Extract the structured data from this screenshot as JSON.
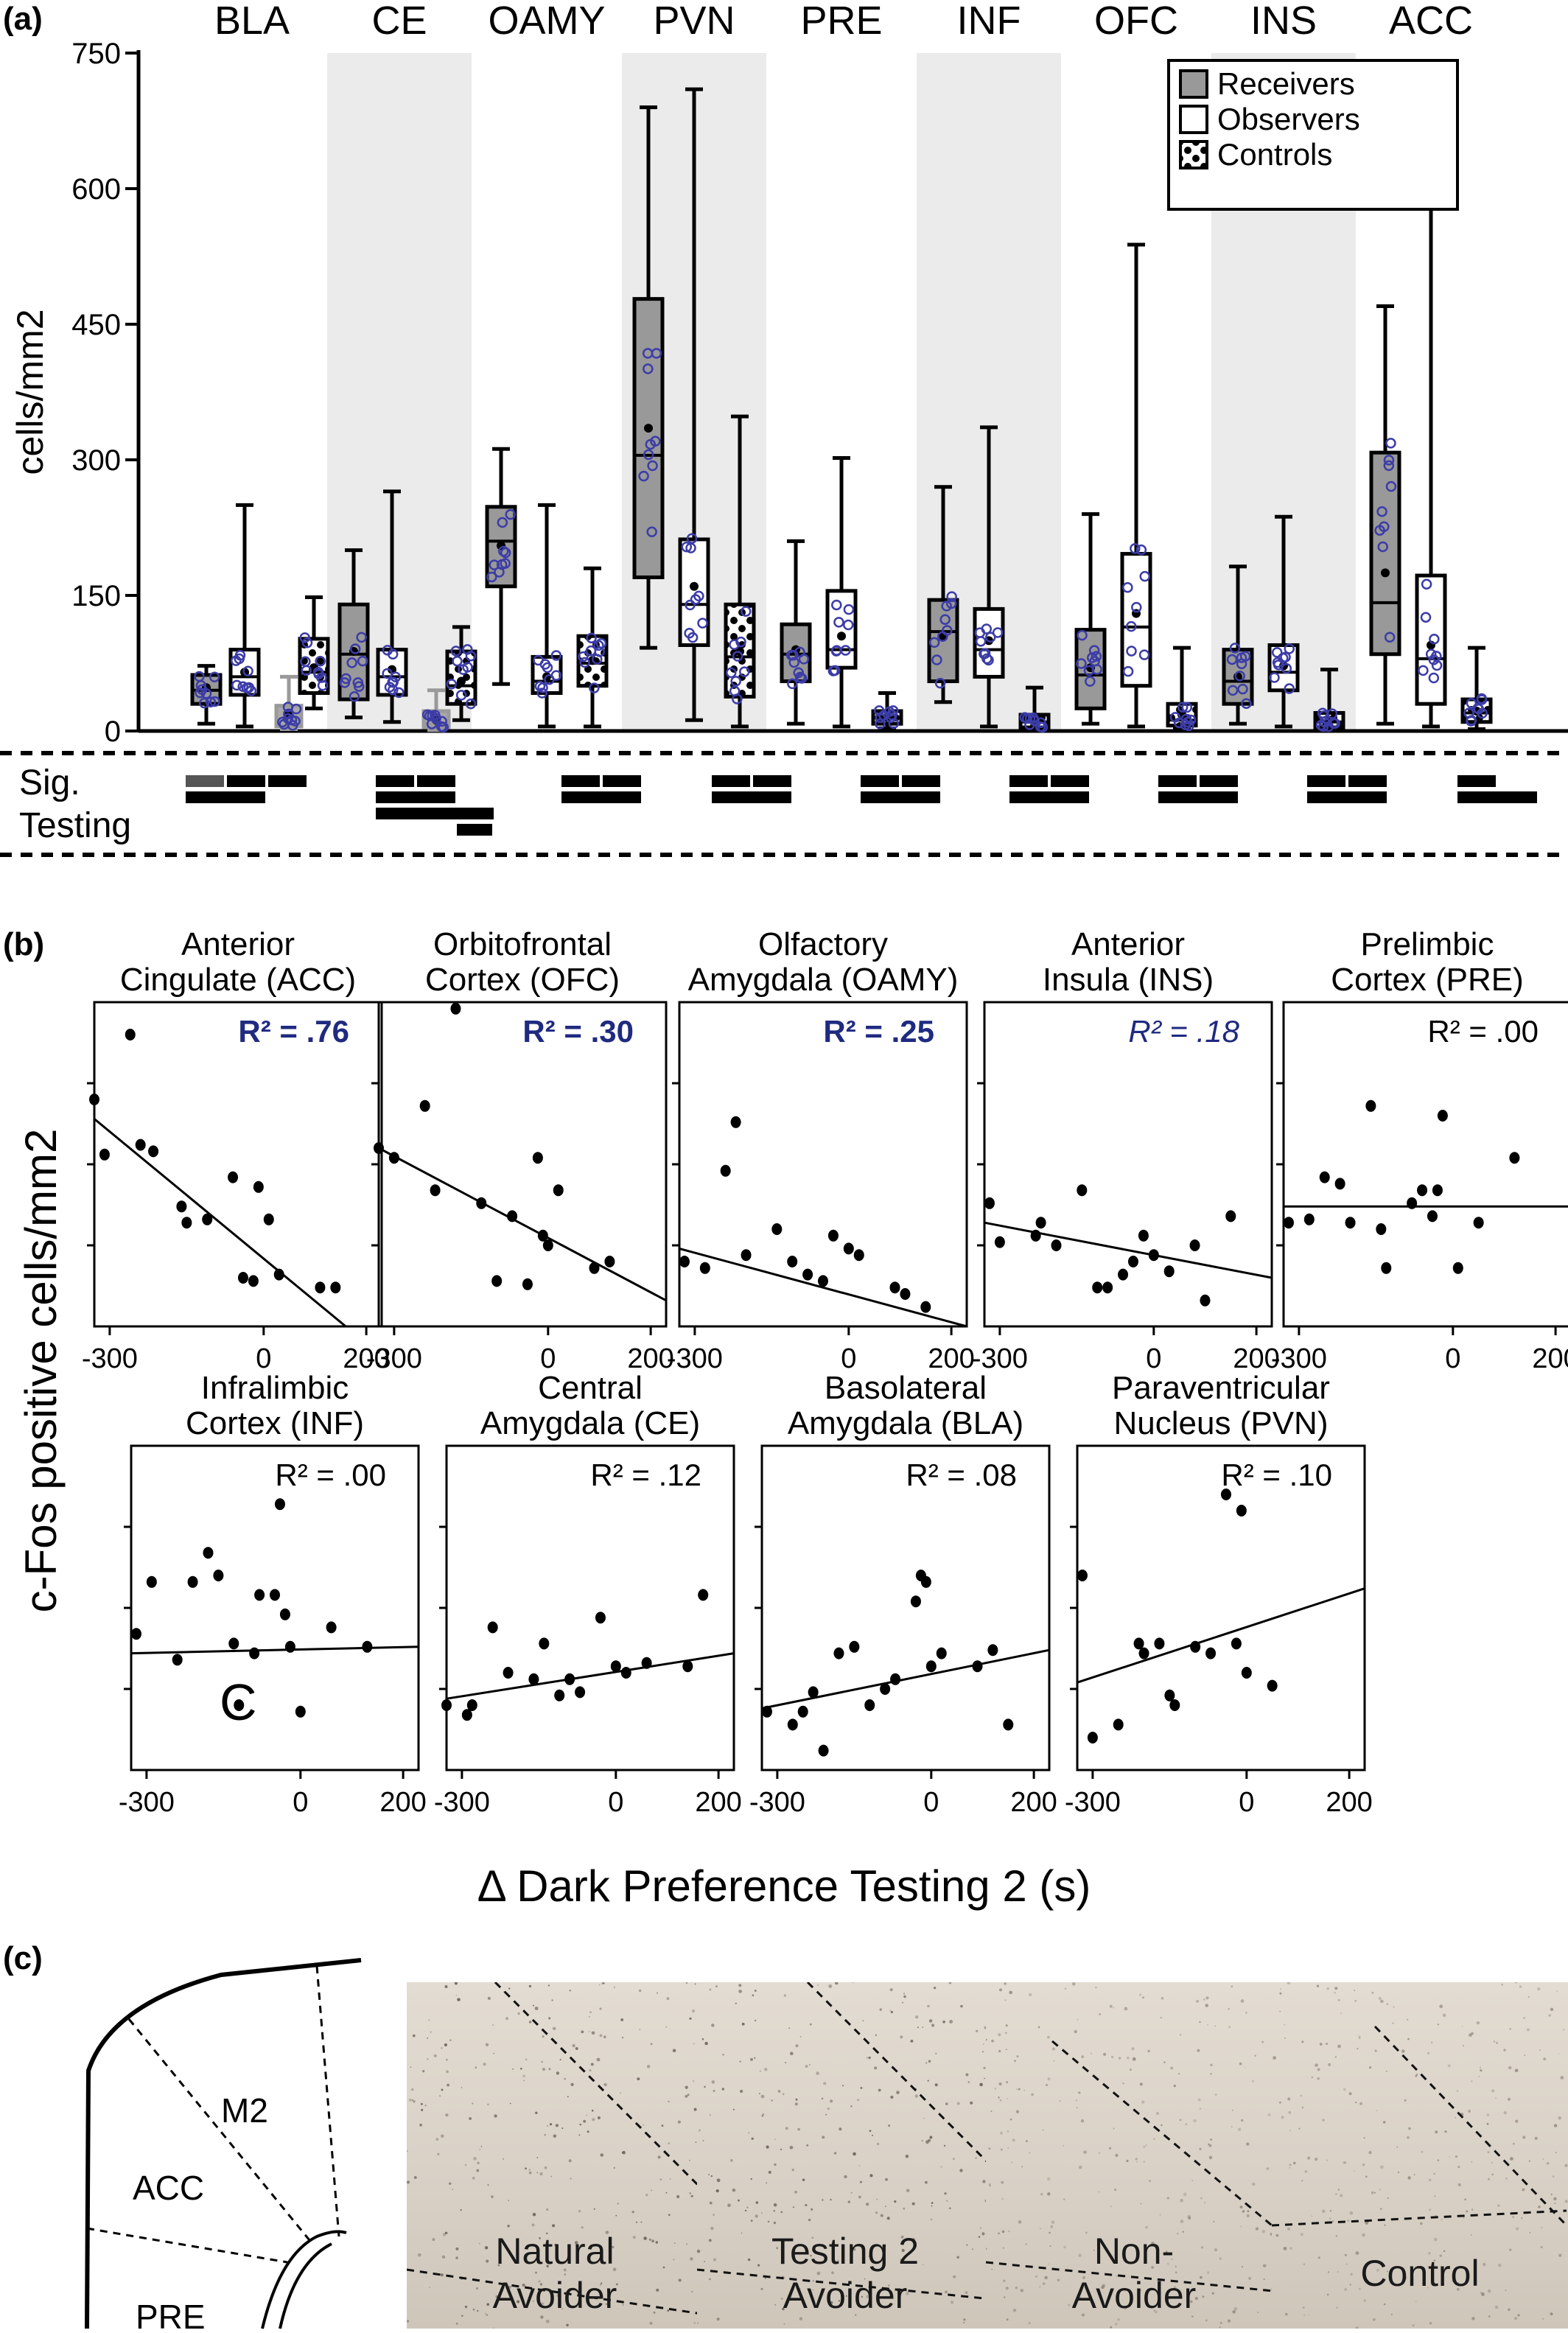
{
  "panel_a": {
    "label": "(a)",
    "ylabel": "cells/mm2",
    "sig_label": [
      "Sig.",
      "Testing"
    ],
    "legend": [
      "Receivers",
      "Observers",
      "Controls"
    ]
  },
  "panel_b": {
    "label": "(b)",
    "ylabel": "c-Fos positive cells/mm2",
    "xlabel": "Δ Dark Preference Testing 2 (s)",
    "stray_mark": "C"
  },
  "panel_c": {
    "label": "(c)",
    "atlas_labels": [
      "M2",
      "ACC",
      "PRE"
    ],
    "photo_labels": [
      [
        "Natural",
        "Avoider"
      ],
      [
        "Testing 2",
        "Avoider"
      ],
      [
        "Non-",
        "Avoider"
      ],
      [
        "Control"
      ]
    ]
  },
  "colors": {
    "receivers": "#999999",
    "observers": "#ffffff",
    "controls_pattern": "#000000",
    "points": "#3c3ca8",
    "highlight_r2": "#1f2a80",
    "region_band": "#ebebeb",
    "tissue": "#ddd5ca"
  },
  "chart_data": [
    {
      "type": "box",
      "panel": "(a)",
      "ylabel": "cells/mm2",
      "ylim": [
        0,
        750
      ],
      "yticks": [
        0,
        150,
        300,
        450,
        600,
        750
      ],
      "categories": [
        "BLA",
        "CE",
        "OAMY",
        "PVN",
        "PRE",
        "INF",
        "OFC",
        "INS",
        "ACC"
      ],
      "shaded_categories": [
        "CE",
        "PVN",
        "INF",
        "INS"
      ],
      "legend": {
        "position": "top-right",
        "entries": [
          "Receivers",
          "Observers",
          "Controls"
        ]
      },
      "series": [
        {
          "name": "Receivers",
          "boxes": [
            {
              "min": 8,
              "q1": 30,
              "median": 45,
              "q3": 62,
              "max": 72,
              "mean": 48
            },
            {
              "min": 15,
              "q1": 35,
              "median": 85,
              "q3": 140,
              "max": 200,
              "mean": 88
            },
            {
              "min": 52,
              "q1": 160,
              "median": 210,
              "q3": 248,
              "max": 312,
              "mean": 205
            },
            {
              "min": 92,
              "q1": 170,
              "median": 305,
              "q3": 478,
              "max": 690,
              "mean": 335
            },
            {
              "min": 8,
              "q1": 55,
              "median": 85,
              "q3": 118,
              "max": 210,
              "mean": 90
            },
            {
              "min": 32,
              "q1": 55,
              "median": 110,
              "q3": 145,
              "max": 270,
              "mean": 105
            },
            {
              "min": 8,
              "q1": 25,
              "median": 62,
              "q3": 112,
              "max": 240,
              "mean": 70
            },
            {
              "min": 8,
              "q1": 30,
              "median": 55,
              "q3": 90,
              "max": 182,
              "mean": 60
            },
            {
              "min": 8,
              "q1": 85,
              "median": 142,
              "q3": 308,
              "max": 470,
              "mean": 175
            }
          ]
        },
        {
          "name": "Observers",
          "boxes": [
            {
              "min": 5,
              "q1": 40,
              "median": 60,
              "q3": 90,
              "max": 250,
              "mean": 65
            },
            {
              "min": 10,
              "q1": 40,
              "median": 60,
              "q3": 90,
              "max": 265,
              "mean": 68
            },
            {
              "min": 5,
              "q1": 42,
              "median": 55,
              "q3": 82,
              "max": 250,
              "mean": 60
            },
            {
              "min": 12,
              "q1": 95,
              "median": 140,
              "q3": 212,
              "max": 710,
              "mean": 160
            },
            {
              "min": 5,
              "q1": 70,
              "median": 90,
              "q3": 155,
              "max": 302,
              "mean": 105
            },
            {
              "min": 5,
              "q1": 60,
              "median": 90,
              "q3": 135,
              "max": 336,
              "mean": 100
            },
            {
              "min": 5,
              "q1": 50,
              "median": 115,
              "q3": 196,
              "max": 538,
              "mean": 130
            },
            {
              "min": 5,
              "q1": 45,
              "median": 65,
              "q3": 95,
              "max": 237,
              "mean": 72
            },
            {
              "min": 5,
              "q1": 30,
              "median": 80,
              "q3": 172,
              "max": 606,
              "mean": 95
            }
          ]
        },
        {
          "name": "Controls",
          "boxes": [
            {
              "min": 25,
              "q1": 42,
              "median": 65,
              "q3": 102,
              "max": 148,
              "mean": 70
            },
            {
              "min": 12,
              "q1": 30,
              "median": 50,
              "q3": 88,
              "max": 115,
              "mean": 55
            },
            {
              "min": 5,
              "q1": 50,
              "median": 75,
              "q3": 105,
              "max": 180,
              "mean": 78
            },
            {
              "min": 5,
              "q1": 38,
              "median": 82,
              "q3": 140,
              "max": 348,
              "mean": 88
            },
            {
              "min": 3,
              "q1": 8,
              "median": 15,
              "q3": 22,
              "max": 42,
              "mean": 15
            },
            {
              "min": 1,
              "q1": 4,
              "median": 10,
              "q3": 18,
              "max": 48,
              "mean": 11
            },
            {
              "min": 2,
              "q1": 6,
              "median": 12,
              "q3": 30,
              "max": 92,
              "mean": 18
            },
            {
              "min": 2,
              "q1": 4,
              "median": 10,
              "q3": 20,
              "max": 68,
              "mean": 12
            },
            {
              "min": 2,
              "q1": 10,
              "median": 20,
              "q3": 35,
              "max": 92,
              "mean": 22
            }
          ]
        }
      ],
      "grey_observer_boxes": [
        {
          "category": "BLA",
          "min": 2,
          "q1": 5,
          "median": 12,
          "q3": 28,
          "max": 60,
          "mean": 20
        },
        {
          "category": "CE",
          "min": 1,
          "q1": 4,
          "median": 8,
          "q3": 22,
          "max": 45,
          "mean": 12
        }
      ]
    },
    {
      "type": "scatter",
      "panel": "(b)",
      "xlabel": "Δ Dark Preference Testing 2 (s)",
      "ylabel": "c-Fos positive cells/mm2",
      "xlim": [
        -330,
        230
      ],
      "ylim": [
        0,
        100
      ],
      "xticks": [
        -300,
        0,
        200
      ],
      "subplots": [
        {
          "title": [
            "Anterior",
            "Cingulate (ACC)"
          ],
          "r2": "R² = .76",
          "r2_style": "bold",
          "line": [
            -330,
            64,
            160,
            0
          ],
          "points": [
            [
              -330,
              70
            ],
            [
              -310,
              53
            ],
            [
              -260,
              90
            ],
            [
              -240,
              56
            ],
            [
              -215,
              54
            ],
            [
              -160,
              37
            ],
            [
              -150,
              32
            ],
            [
              -110,
              33
            ],
            [
              -60,
              46
            ],
            [
              -40,
              15
            ],
            [
              -20,
              14
            ],
            [
              -10,
              43
            ],
            [
              10,
              33
            ],
            [
              30,
              16
            ],
            [
              110,
              12
            ],
            [
              140,
              12
            ]
          ]
        },
        {
          "title": [
            "Orbitofrontal",
            "Cortex (OFC)"
          ],
          "r2": "R² = .30",
          "r2_style": "bold",
          "line": [
            -330,
            55,
            230,
            8
          ],
          "points": [
            [
              -330,
              55
            ],
            [
              -300,
              52
            ],
            [
              -240,
              68
            ],
            [
              -220,
              42
            ],
            [
              -180,
              98
            ],
            [
              -130,
              38
            ],
            [
              -100,
              14
            ],
            [
              -70,
              34
            ],
            [
              -40,
              13
            ],
            [
              -20,
              52
            ],
            [
              -10,
              28
            ],
            [
              0,
              25
            ],
            [
              20,
              42
            ],
            [
              90,
              18
            ],
            [
              120,
              20
            ]
          ]
        },
        {
          "title": [
            "Olfactory",
            "Amygdala (OAMY)"
          ],
          "r2": "R² = .25",
          "r2_style": "bold",
          "line": [
            -330,
            24,
            230,
            0
          ],
          "points": [
            [
              -320,
              20
            ],
            [
              -280,
              18
            ],
            [
              -240,
              48
            ],
            [
              -220,
              63
            ],
            [
              -200,
              22
            ],
            [
              -140,
              30
            ],
            [
              -110,
              20
            ],
            [
              -80,
              16
            ],
            [
              -50,
              14
            ],
            [
              -30,
              28
            ],
            [
              0,
              24
            ],
            [
              20,
              22
            ],
            [
              90,
              12
            ],
            [
              110,
              10
            ],
            [
              150,
              6
            ]
          ]
        },
        {
          "title": [
            "Anterior",
            "Insula (INS)"
          ],
          "r2": "R² = .18",
          "r2_style": "italic",
          "line": [
            -330,
            32,
            230,
            15
          ],
          "points": [
            [
              -320,
              38
            ],
            [
              -300,
              26
            ],
            [
              -230,
              28
            ],
            [
              -220,
              32
            ],
            [
              -190,
              25
            ],
            [
              -140,
              42
            ],
            [
              -110,
              12
            ],
            [
              -90,
              12
            ],
            [
              -60,
              16
            ],
            [
              -40,
              20
            ],
            [
              -20,
              28
            ],
            [
              0,
              22
            ],
            [
              30,
              17
            ],
            [
              80,
              25
            ],
            [
              100,
              8
            ],
            [
              150,
              34
            ]
          ]
        },
        {
          "title": [
            "Prelimbic",
            "Cortex (PRE)"
          ],
          "r2": "R² = .00",
          "r2_style": "plain",
          "line": [
            -330,
            37,
            230,
            37
          ],
          "points": [
            [
              -320,
              32
            ],
            [
              -280,
              33
            ],
            [
              -250,
              46
            ],
            [
              -220,
              44
            ],
            [
              -200,
              32
            ],
            [
              -160,
              68
            ],
            [
              -140,
              30
            ],
            [
              -130,
              18
            ],
            [
              -80,
              38
            ],
            [
              -60,
              42
            ],
            [
              -40,
              34
            ],
            [
              -30,
              42
            ],
            [
              -20,
              65
            ],
            [
              10,
              18
            ],
            [
              50,
              32
            ],
            [
              120,
              52
            ]
          ]
        },
        {
          "title": [
            "Infralimbic",
            "Cortex (INF)"
          ],
          "r2": "R² = .00",
          "r2_style": "plain",
          "line": [
            -330,
            36,
            230,
            38
          ],
          "points": [
            [
              -320,
              42
            ],
            [
              -290,
              58
            ],
            [
              -240,
              34
            ],
            [
              -210,
              58
            ],
            [
              -180,
              67
            ],
            [
              -160,
              60
            ],
            [
              -130,
              39
            ],
            [
              -120,
              20
            ],
            [
              -90,
              36
            ],
            [
              -80,
              54
            ],
            [
              -50,
              54
            ],
            [
              -40,
              82
            ],
            [
              -30,
              48
            ],
            [
              -20,
              38
            ],
            [
              0,
              18
            ],
            [
              60,
              44
            ],
            [
              130,
              38
            ]
          ]
        },
        {
          "title": [
            "Central",
            "Amygdala (CE)"
          ],
          "r2": "R² = .12",
          "r2_style": "plain",
          "line": [
            -330,
            22,
            230,
            36
          ],
          "points": [
            [
              -330,
              20
            ],
            [
              -290,
              17
            ],
            [
              -280,
              20
            ],
            [
              -240,
              44
            ],
            [
              -210,
              30
            ],
            [
              -160,
              28
            ],
            [
              -140,
              39
            ],
            [
              -110,
              23
            ],
            [
              -90,
              28
            ],
            [
              -70,
              24
            ],
            [
              -30,
              47
            ],
            [
              0,
              32
            ],
            [
              20,
              30
            ],
            [
              60,
              33
            ],
            [
              140,
              32
            ],
            [
              170,
              54
            ]
          ]
        },
        {
          "title": [
            "Basolateral",
            "Amygdala (BLA)"
          ],
          "r2": "R² = .08",
          "r2_style": "plain",
          "line": [
            -330,
            19,
            230,
            37
          ],
          "points": [
            [
              -320,
              18
            ],
            [
              -270,
              14
            ],
            [
              -250,
              18
            ],
            [
              -230,
              24
            ],
            [
              -210,
              6
            ],
            [
              -180,
              36
            ],
            [
              -150,
              38
            ],
            [
              -120,
              20
            ],
            [
              -90,
              25
            ],
            [
              -70,
              28
            ],
            [
              -30,
              52
            ],
            [
              -20,
              60
            ],
            [
              -10,
              58
            ],
            [
              0,
              32
            ],
            [
              20,
              36
            ],
            [
              90,
              32
            ],
            [
              120,
              37
            ],
            [
              150,
              14
            ]
          ]
        },
        {
          "title": [
            "Paraventricular",
            "Nucleus (PVN)"
          ],
          "r2": "R² = .10",
          "r2_style": "plain",
          "line": [
            -330,
            27,
            230,
            56
          ],
          "points": [
            [
              -320,
              60
            ],
            [
              -300,
              10
            ],
            [
              -250,
              14
            ],
            [
              -210,
              39
            ],
            [
              -200,
              36
            ],
            [
              -170,
              39
            ],
            [
              -150,
              23
            ],
            [
              -140,
              20
            ],
            [
              -100,
              38
            ],
            [
              -70,
              36
            ],
            [
              -40,
              85
            ],
            [
              -20,
              39
            ],
            [
              -10,
              80
            ],
            [
              0,
              30
            ],
            [
              50,
              26
            ]
          ]
        }
      ]
    }
  ]
}
